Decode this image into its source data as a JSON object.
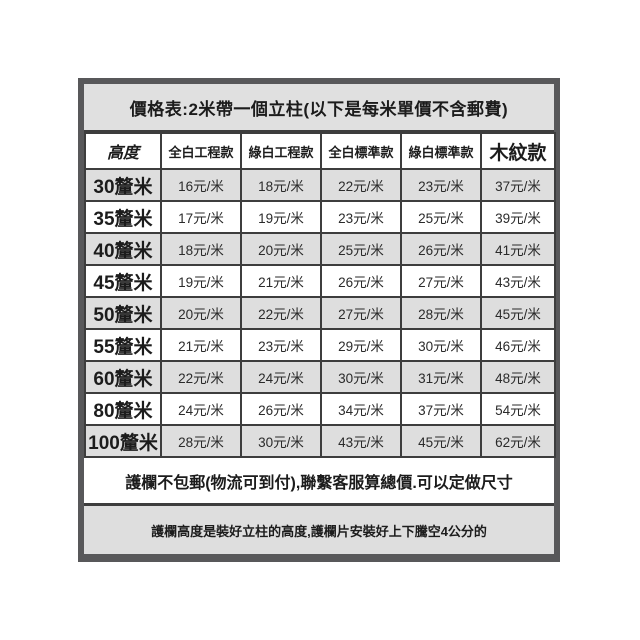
{
  "poster": {
    "title": "價格表:2米帶一個立柱(以下是每米單價不含郵費)",
    "table": {
      "columns": [
        "高度",
        "全白工程款",
        "綠白工程款",
        "全白標準款",
        "綠白標準款",
        "木紋款"
      ],
      "unit_suffix": "元/米",
      "rows": [
        {
          "height": "30釐米",
          "prices": [
            "16元/米",
            "18元/米",
            "22元/米",
            "23元/米",
            "37元/米"
          ]
        },
        {
          "height": "35釐米",
          "prices": [
            "17元/米",
            "19元/米",
            "23元/米",
            "25元/米",
            "39元/米"
          ]
        },
        {
          "height": "40釐米",
          "prices": [
            "18元/米",
            "20元/米",
            "25元/米",
            "26元/米",
            "41元/米"
          ]
        },
        {
          "height": "45釐米",
          "prices": [
            "19元/米",
            "21元/米",
            "26元/米",
            "27元/米",
            "43元/米"
          ]
        },
        {
          "height": "50釐米",
          "prices": [
            "20元/米",
            "22元/米",
            "27元/米",
            "28元/米",
            "45元/米"
          ]
        },
        {
          "height": "55釐米",
          "prices": [
            "21元/米",
            "23元/米",
            "29元/米",
            "30元/米",
            "46元/米"
          ]
        },
        {
          "height": "60釐米",
          "prices": [
            "22元/米",
            "24元/米",
            "30元/米",
            "31元/米",
            "48元/米"
          ]
        },
        {
          "height": "80釐米",
          "prices": [
            "24元/米",
            "26元/米",
            "34元/米",
            "37元/米",
            "54元/米"
          ]
        },
        {
          "height": "100釐米",
          "prices": [
            "28元/米",
            "30元/米",
            "43元/米",
            "45元/米",
            "62元/米"
          ]
        }
      ]
    },
    "note_primary": "護欄不包郵(物流可到付),聯繫客服算總價.可以定做尺寸",
    "note_secondary": "護欄高度是裝好立柱的高度,護欄片安裝好上下騰空4公分的",
    "colors": {
      "page_background": "#ffffff",
      "frame_gray": "#58585a",
      "band_gray": "#e0e0e0",
      "stripe_gray": "#dedede",
      "rule_dark": "#3d3d3d",
      "text": "#1c1c1c"
    }
  }
}
